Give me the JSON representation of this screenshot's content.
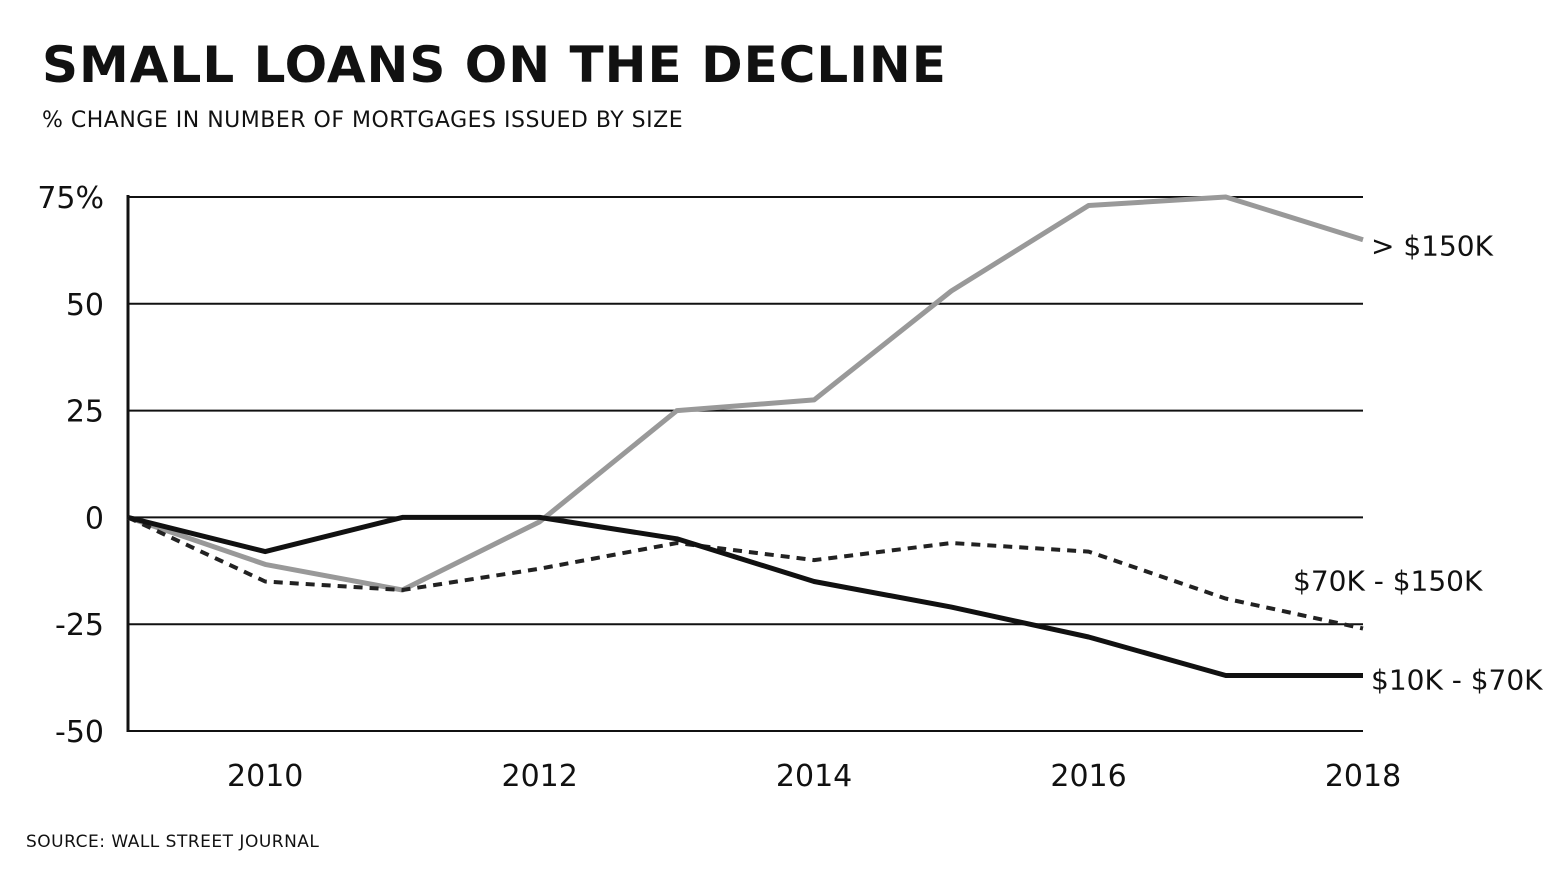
{
  "chart_data": {
    "type": "line",
    "title": "SMALL LOANS ON THE DECLINE",
    "subtitle": "% CHANGE IN NUMBER OF MORTGAGES ISSUED BY SIZE",
    "source": "SOURCE: WALL STREET JOURNAL",
    "x": [
      2009,
      2010,
      2011,
      2012,
      2013,
      2014,
      2015,
      2016,
      2017,
      2018
    ],
    "xlim": [
      2009,
      2018
    ],
    "x_ticks": [
      2010,
      2012,
      2014,
      2016,
      2018
    ],
    "x_tick_labels": [
      "2010",
      "2012",
      "2014",
      "2016",
      "2018"
    ],
    "ylim": [
      -50,
      75
    ],
    "y_ticks": [
      75,
      50,
      25,
      0,
      -25,
      -50
    ],
    "y_tick_labels": [
      "75%",
      "50",
      "25",
      "0",
      "-25",
      "-50"
    ],
    "grid": true,
    "series": [
      {
        "name": "> $150K",
        "color": "#999999",
        "style": "solid",
        "values": [
          0,
          -11,
          -17,
          -1,
          25,
          27.5,
          53,
          73,
          75,
          65
        ]
      },
      {
        "name": "$70K - $150K",
        "color": "#222222",
        "style": "dotted",
        "values": [
          0,
          -15,
          -17,
          -12,
          -6,
          -10,
          -6,
          -8,
          -19,
          -26
        ]
      },
      {
        "name": "$10K - $70K",
        "color": "#111111",
        "style": "solid",
        "values": [
          0,
          -8,
          0,
          0,
          -5,
          -15,
          -21,
          -28,
          -37,
          -37
        ]
      }
    ]
  }
}
